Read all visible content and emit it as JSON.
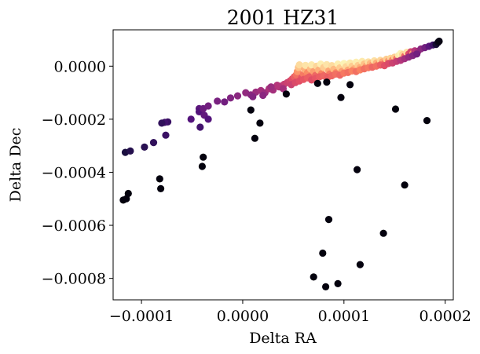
{
  "chart_data": {
    "type": "scatter",
    "title": "2001 HZ31",
    "xlabel": "Delta RA",
    "ylabel": "Delta Dec",
    "xlim": [
      -0.000128,
      0.000208
    ],
    "ylim": [
      -0.000881,
      0.000137
    ],
    "x_ticks": [
      -0.0001,
      0.0,
      0.0001,
      0.0002
    ],
    "x_tick_labels": [
      "−0.0001",
      "0.0000",
      "0.0001",
      "0.0002"
    ],
    "y_ticks": [
      0.0,
      -0.0002,
      -0.0004,
      -0.0006,
      -0.0008
    ],
    "y_tick_labels": [
      "0.0000",
      "−0.0002",
      "−0.0004",
      "−0.0006",
      "−0.0008"
    ],
    "grid": false,
    "legend": "none",
    "colormap": "magma",
    "points": [
      {
        "x": -0.000116,
        "y": -0.000325,
        "c": 0.12
      },
      {
        "x": -0.000111,
        "y": -0.00032,
        "c": 0.15
      },
      {
        "x": -9.7e-05,
        "y": -0.000305,
        "c": 0.16
      },
      {
        "x": -8.8e-05,
        "y": -0.000288,
        "c": 0.18
      },
      {
        "x": -7.4e-05,
        "y": -0.00021,
        "c": 0.2
      },
      {
        "x": -7.7e-05,
        "y": -0.000212,
        "c": 0.22
      },
      {
        "x": -8e-05,
        "y": -0.000215,
        "c": 0.18
      },
      {
        "x": -7.6e-05,
        "y": -0.00026,
        "c": 0.2
      },
      {
        "x": -5.1e-05,
        "y": -0.0002,
        "c": 0.26
      },
      {
        "x": -4.3e-05,
        "y": -0.00016,
        "c": 0.28
      },
      {
        "x": -4.3e-05,
        "y": -0.000172,
        "c": 0.26
      },
      {
        "x": -3.8e-05,
        "y": -0.000185,
        "c": 0.3
      },
      {
        "x": -4.2e-05,
        "y": -0.00023,
        "c": 0.22
      },
      {
        "x": -3.9e-05,
        "y": -0.00016,
        "c": 0.32
      },
      {
        "x": -3.4e-05,
        "y": -0.0002,
        "c": 0.26
      },
      {
        "x": -3.4e-05,
        "y": -0.00015,
        "c": 0.34
      },
      {
        "x": -2.5e-05,
        "y": -0.000132,
        "c": 0.36
      },
      {
        "x": -1.8e-05,
        "y": -0.000135,
        "c": 0.34
      },
      {
        "x": -1.2e-05,
        "y": -0.00012,
        "c": 0.38
      },
      {
        "x": -5e-06,
        "y": -0.000112,
        "c": 0.4
      },
      {
        "x": 3e-06,
        "y": -0.0001,
        "c": 0.42
      },
      {
        "x": 8e-06,
        "y": -0.000108,
        "c": 0.4
      },
      {
        "x": 1.3e-05,
        "y": -9.8e-05,
        "c": 0.44
      },
      {
        "x": 1.8e-05,
        "y": -9.2e-05,
        "c": 0.46
      },
      {
        "x": 2.2e-05,
        "y": -0.0001,
        "c": 0.44
      },
      {
        "x": 2.6e-05,
        "y": -8.5e-05,
        "c": 0.48
      },
      {
        "x": 3e-05,
        "y": -9e-05,
        "c": 0.46
      },
      {
        "x": 3.4e-05,
        "y": -7.2e-05,
        "c": 0.5
      },
      {
        "x": 3.8e-05,
        "y": -7.5e-05,
        "c": 0.52
      },
      {
        "x": 4.1e-05,
        "y": -6.8e-05,
        "c": 0.54
      },
      {
        "x": 4.4e-05,
        "y": -6.2e-05,
        "c": 0.56
      },
      {
        "x": 4.7e-05,
        "y": -5.5e-05,
        "c": 0.58
      },
      {
        "x": 4.9e-05,
        "y": -4.8e-05,
        "c": 0.62
      },
      {
        "x": 5.1e-05,
        "y": -4e-05,
        "c": 0.66
      },
      {
        "x": 5.3e-05,
        "y": -3.2e-05,
        "c": 0.7
      },
      {
        "x": 5.4e-05,
        "y": -2e-05,
        "c": 0.78
      },
      {
        "x": 5.5e-05,
        "y": -5e-06,
        "c": 0.88
      },
      {
        "x": 5.6e-05,
        "y": 5e-06,
        "c": 0.93
      },
      {
        "x": 5.8e-05,
        "y": -4.5e-05,
        "c": 0.64
      },
      {
        "x": 6e-05,
        "y": -3e-05,
        "c": 0.72
      },
      {
        "x": 6.1e-05,
        "y": -1.2e-05,
        "c": 0.84
      },
      {
        "x": 6.2e-05,
        "y": 3e-06,
        "c": 0.95
      },
      {
        "x": 6.4e-05,
        "y": -2.5e-05,
        "c": 0.76
      },
      {
        "x": 6.6e-05,
        "y": -4e-05,
        "c": 0.66
      },
      {
        "x": 6.7e-05,
        "y": -1e-05,
        "c": 0.86
      },
      {
        "x": 6.8e-05,
        "y": 5e-06,
        "c": 0.96
      },
      {
        "x": 7e-05,
        "y": -2e-05,
        "c": 0.8
      },
      {
        "x": 7.2e-05,
        "y": -3.5e-05,
        "c": 0.68
      },
      {
        "x": 7.3e-05,
        "y": 0.0,
        "c": 0.92
      },
      {
        "x": 7.5e-05,
        "y": -1.5e-05,
        "c": 0.84
      },
      {
        "x": 7.7e-05,
        "y": 8e-06,
        "c": 0.97
      },
      {
        "x": 7.8e-05,
        "y": -2.8e-05,
        "c": 0.74
      },
      {
        "x": 8e-05,
        "y": -5e-06,
        "c": 0.9
      },
      {
        "x": 8.2e-05,
        "y": -4e-05,
        "c": 0.64
      },
      {
        "x": 8.3e-05,
        "y": 6e-06,
        "c": 0.95
      },
      {
        "x": 8.5e-05,
        "y": -1.8e-05,
        "c": 0.82
      },
      {
        "x": 8.6e-05,
        "y": -3e-05,
        "c": 0.72
      },
      {
        "x": 8.8e-05,
        "y": 2e-06,
        "c": 0.93
      },
      {
        "x": 9e-05,
        "y": -1.2e-05,
        "c": 0.86
      },
      {
        "x": 9.2e-05,
        "y": -2.5e-05,
        "c": 0.76
      },
      {
        "x": 9.4e-05,
        "y": 8e-06,
        "c": 0.97
      },
      {
        "x": 9.6e-05,
        "y": -6e-06,
        "c": 0.9
      },
      {
        "x": 9.8e-05,
        "y": -2e-05,
        "c": 0.8
      },
      {
        "x": 0.0001,
        "y": 1e-05,
        "c": 0.98
      },
      {
        "x": 0.000102,
        "y": -2e-06,
        "c": 0.92
      },
      {
        "x": 0.000104,
        "y": -1.5e-05,
        "c": 0.82
      },
      {
        "x": 0.000106,
        "y": 1.2e-05,
        "c": 0.96
      },
      {
        "x": 0.000108,
        "y": 0.0,
        "c": 0.9
      },
      {
        "x": 0.00011,
        "y": -1e-05,
        "c": 0.84
      },
      {
        "x": 0.000112,
        "y": 1.5e-05,
        "c": 0.97
      },
      {
        "x": 0.000114,
        "y": 3e-06,
        "c": 0.9
      },
      {
        "x": 0.000116,
        "y": -5e-06,
        "c": 0.84
      },
      {
        "x": 0.000118,
        "y": 1.8e-05,
        "c": 0.96
      },
      {
        "x": 0.00012,
        "y": 8e-06,
        "c": 0.88
      },
      {
        "x": 0.000122,
        "y": 0.0,
        "c": 0.8
      },
      {
        "x": 0.000124,
        "y": 1.6e-05,
        "c": 0.94
      },
      {
        "x": 0.000126,
        "y": 1e-05,
        "c": 0.86
      },
      {
        "x": 0.000128,
        "y": 4e-06,
        "c": 0.78
      },
      {
        "x": 0.00013,
        "y": 2e-05,
        "c": 0.94
      },
      {
        "x": 0.000132,
        "y": 1.2e-05,
        "c": 0.84
      },
      {
        "x": 0.000134,
        "y": 6e-06,
        "c": 0.74
      },
      {
        "x": 0.000136,
        "y": 2.2e-05,
        "c": 0.92
      },
      {
        "x": 0.000138,
        "y": 1.6e-05,
        "c": 0.82
      },
      {
        "x": 0.00014,
        "y": 1e-05,
        "c": 0.7
      },
      {
        "x": 0.000142,
        "y": 2.6e-05,
        "c": 0.9
      },
      {
        "x": 0.000144,
        "y": 2e-05,
        "c": 0.78
      },
      {
        "x": 0.000146,
        "y": 3e-05,
        "c": 0.92
      },
      {
        "x": 0.000148,
        "y": 2.4e-05,
        "c": 0.76
      },
      {
        "x": 0.00015,
        "y": 3.4e-05,
        "c": 0.9
      },
      {
        "x": 0.000152,
        "y": 2.8e-05,
        "c": 0.72
      },
      {
        "x": 0.000154,
        "y": 4e-05,
        "c": 0.96
      },
      {
        "x": 0.000156,
        "y": 4.8e-05,
        "c": 0.98
      },
      {
        "x": 0.000158,
        "y": 4.4e-05,
        "c": 0.92
      },
      {
        "x": 0.00016,
        "y": 3.8e-05,
        "c": 0.68
      },
      {
        "x": 0.000162,
        "y": 5.2e-05,
        "c": 0.94
      },
      {
        "x": 0.000164,
        "y": 4.6e-05,
        "c": 0.62
      },
      {
        "x": 0.000166,
        "y": 5.4e-05,
        "c": 0.58
      },
      {
        "x": 0.000168,
        "y": 4.8e-05,
        "c": 0.8
      },
      {
        "x": 0.00017,
        "y": 5.8e-05,
        "c": 0.5
      },
      {
        "x": 0.000173,
        "y": 5.6e-05,
        "c": 0.46
      },
      {
        "x": 0.000176,
        "y": 6.5e-05,
        "c": 0.4
      },
      {
        "x": 0.00018,
        "y": 7e-05,
        "c": 0.34
      },
      {
        "x": 0.000184,
        "y": 7.5e-05,
        "c": 0.28
      },
      {
        "x": 0.000188,
        "y": 8e-05,
        "c": 0.2
      },
      {
        "x": 0.000191,
        "y": 8.2e-05,
        "c": 0.1
      },
      {
        "x": 0.000193,
        "y": 9e-05,
        "c": 0.05
      },
      {
        "x": 0.000194,
        "y": 9.4e-05,
        "c": 0.03
      },
      {
        "x": 4.8e-05,
        "y": -7e-05,
        "c": 0.56
      },
      {
        "x": 5.2e-05,
        "y": -6.2e-05,
        "c": 0.6
      },
      {
        "x": 5.6e-05,
        "y": -5.6e-05,
        "c": 0.62
      },
      {
        "x": 6e-05,
        "y": -5e-05,
        "c": 0.64
      },
      {
        "x": 6.4e-05,
        "y": -4.4e-05,
        "c": 0.66
      },
      {
        "x": 6.8e-05,
        "y": -5.2e-05,
        "c": 0.62
      },
      {
        "x": 7.2e-05,
        "y": -4.6e-05,
        "c": 0.64
      },
      {
        "x": 7.6e-05,
        "y": -4e-05,
        "c": 0.66
      },
      {
        "x": 8e-05,
        "y": -3.6e-05,
        "c": 0.68
      },
      {
        "x": 8.4e-05,
        "y": -4.2e-05,
        "c": 0.66
      },
      {
        "x": 8.8e-05,
        "y": -3.6e-05,
        "c": 0.68
      },
      {
        "x": 9.2e-05,
        "y": -3e-05,
        "c": 0.7
      },
      {
        "x": 9.6e-05,
        "y": -3.4e-05,
        "c": 0.68
      },
      {
        "x": 0.0001,
        "y": -2.6e-05,
        "c": 0.72
      },
      {
        "x": 0.000104,
        "y": -2.4e-05,
        "c": 0.7
      },
      {
        "x": 0.000108,
        "y": -1.8e-05,
        "c": 0.74
      },
      {
        "x": 0.000112,
        "y": -2e-05,
        "c": 0.7
      },
      {
        "x": 0.000116,
        "y": -1.4e-05,
        "c": 0.74
      },
      {
        "x": 0.00012,
        "y": -1e-05,
        "c": 0.7
      },
      {
        "x": 0.000124,
        "y": -6e-06,
        "c": 0.72
      },
      {
        "x": 0.000128,
        "y": -4e-06,
        "c": 0.68
      },
      {
        "x": 0.000132,
        "y": 0.0,
        "c": 0.7
      },
      {
        "x": 0.000136,
        "y": 4e-06,
        "c": 0.66
      },
      {
        "x": 0.00014,
        "y": 2e-06,
        "c": 0.62
      },
      {
        "x": 0.000144,
        "y": 1e-05,
        "c": 0.6
      },
      {
        "x": 0.000148,
        "y": 1.2e-05,
        "c": 0.56
      },
      {
        "x": 0.000152,
        "y": 1.8e-05,
        "c": 0.54
      },
      {
        "x": 0.000156,
        "y": 2.2e-05,
        "c": 0.5
      },
      {
        "x": 0.00016,
        "y": 2.8e-05,
        "c": 0.46
      },
      {
        "x": 0.000164,
        "y": 3.4e-05,
        "c": 0.42
      },
      {
        "x": 0.000168,
        "y": 4e-05,
        "c": 0.38
      },
      {
        "x": 0.000172,
        "y": 4.6e-05,
        "c": 0.34
      },
      {
        "x": 3.6e-05,
        "y": -7.8e-05,
        "c": 0.5
      },
      {
        "x": 4e-05,
        "y": -8.5e-05,
        "c": 0.46
      },
      {
        "x": 2.8e-05,
        "y": -7.8e-05,
        "c": 0.44
      },
      {
        "x": 2e-05,
        "y": -0.00011,
        "c": 0.4
      },
      {
        "x": 1e-05,
        "y": -0.000115,
        "c": 0.38
      },
      {
        "x": -0.000118,
        "y": -0.000505,
        "c": 0.02
      },
      {
        "x": -0.000115,
        "y": -0.0005,
        "c": 0.02
      },
      {
        "x": -0.000113,
        "y": -0.00048,
        "c": 0.02
      },
      {
        "x": -8.2e-05,
        "y": -0.000425,
        "c": 0.02
      },
      {
        "x": -8.1e-05,
        "y": -0.000462,
        "c": 0.02
      },
      {
        "x": -3.9e-05,
        "y": -0.000343,
        "c": 0.02
      },
      {
        "x": -4e-05,
        "y": -0.000378,
        "c": 0.02
      },
      {
        "x": 8e-06,
        "y": -0.000165,
        "c": 0.02
      },
      {
        "x": 1.2e-05,
        "y": -0.000272,
        "c": 0.02
      },
      {
        "x": 1.7e-05,
        "y": -0.000215,
        "c": 0.02
      },
      {
        "x": 4.3e-05,
        "y": -0.000105,
        "c": 0.02
      },
      {
        "x": 7.4e-05,
        "y": -6.5e-05,
        "c": 0.02
      },
      {
        "x": 8.3e-05,
        "y": -6e-05,
        "c": 0.02
      },
      {
        "x": 9.7e-05,
        "y": -0.000118,
        "c": 0.02
      },
      {
        "x": 0.000106,
        "y": -7e-05,
        "c": 0.02
      },
      {
        "x": 0.000113,
        "y": -0.00039,
        "c": 0.02
      },
      {
        "x": 0.000151,
        "y": -0.000162,
        "c": 0.02
      },
      {
        "x": 0.00016,
        "y": -0.000448,
        "c": 0.02
      },
      {
        "x": 0.000182,
        "y": -0.000205,
        "c": 0.02
      },
      {
        "x": 8.5e-05,
        "y": -0.000578,
        "c": 0.02
      },
      {
        "x": 0.000139,
        "y": -0.00063,
        "c": 0.02
      },
      {
        "x": 7.9e-05,
        "y": -0.000705,
        "c": 0.02
      },
      {
        "x": 0.000116,
        "y": -0.000748,
        "c": 0.02
      },
      {
        "x": 7e-05,
        "y": -0.000795,
        "c": 0.02
      },
      {
        "x": 9.4e-05,
        "y": -0.00082,
        "c": 0.02
      },
      {
        "x": 8.2e-05,
        "y": -0.000832,
        "c": 0.02
      }
    ]
  }
}
